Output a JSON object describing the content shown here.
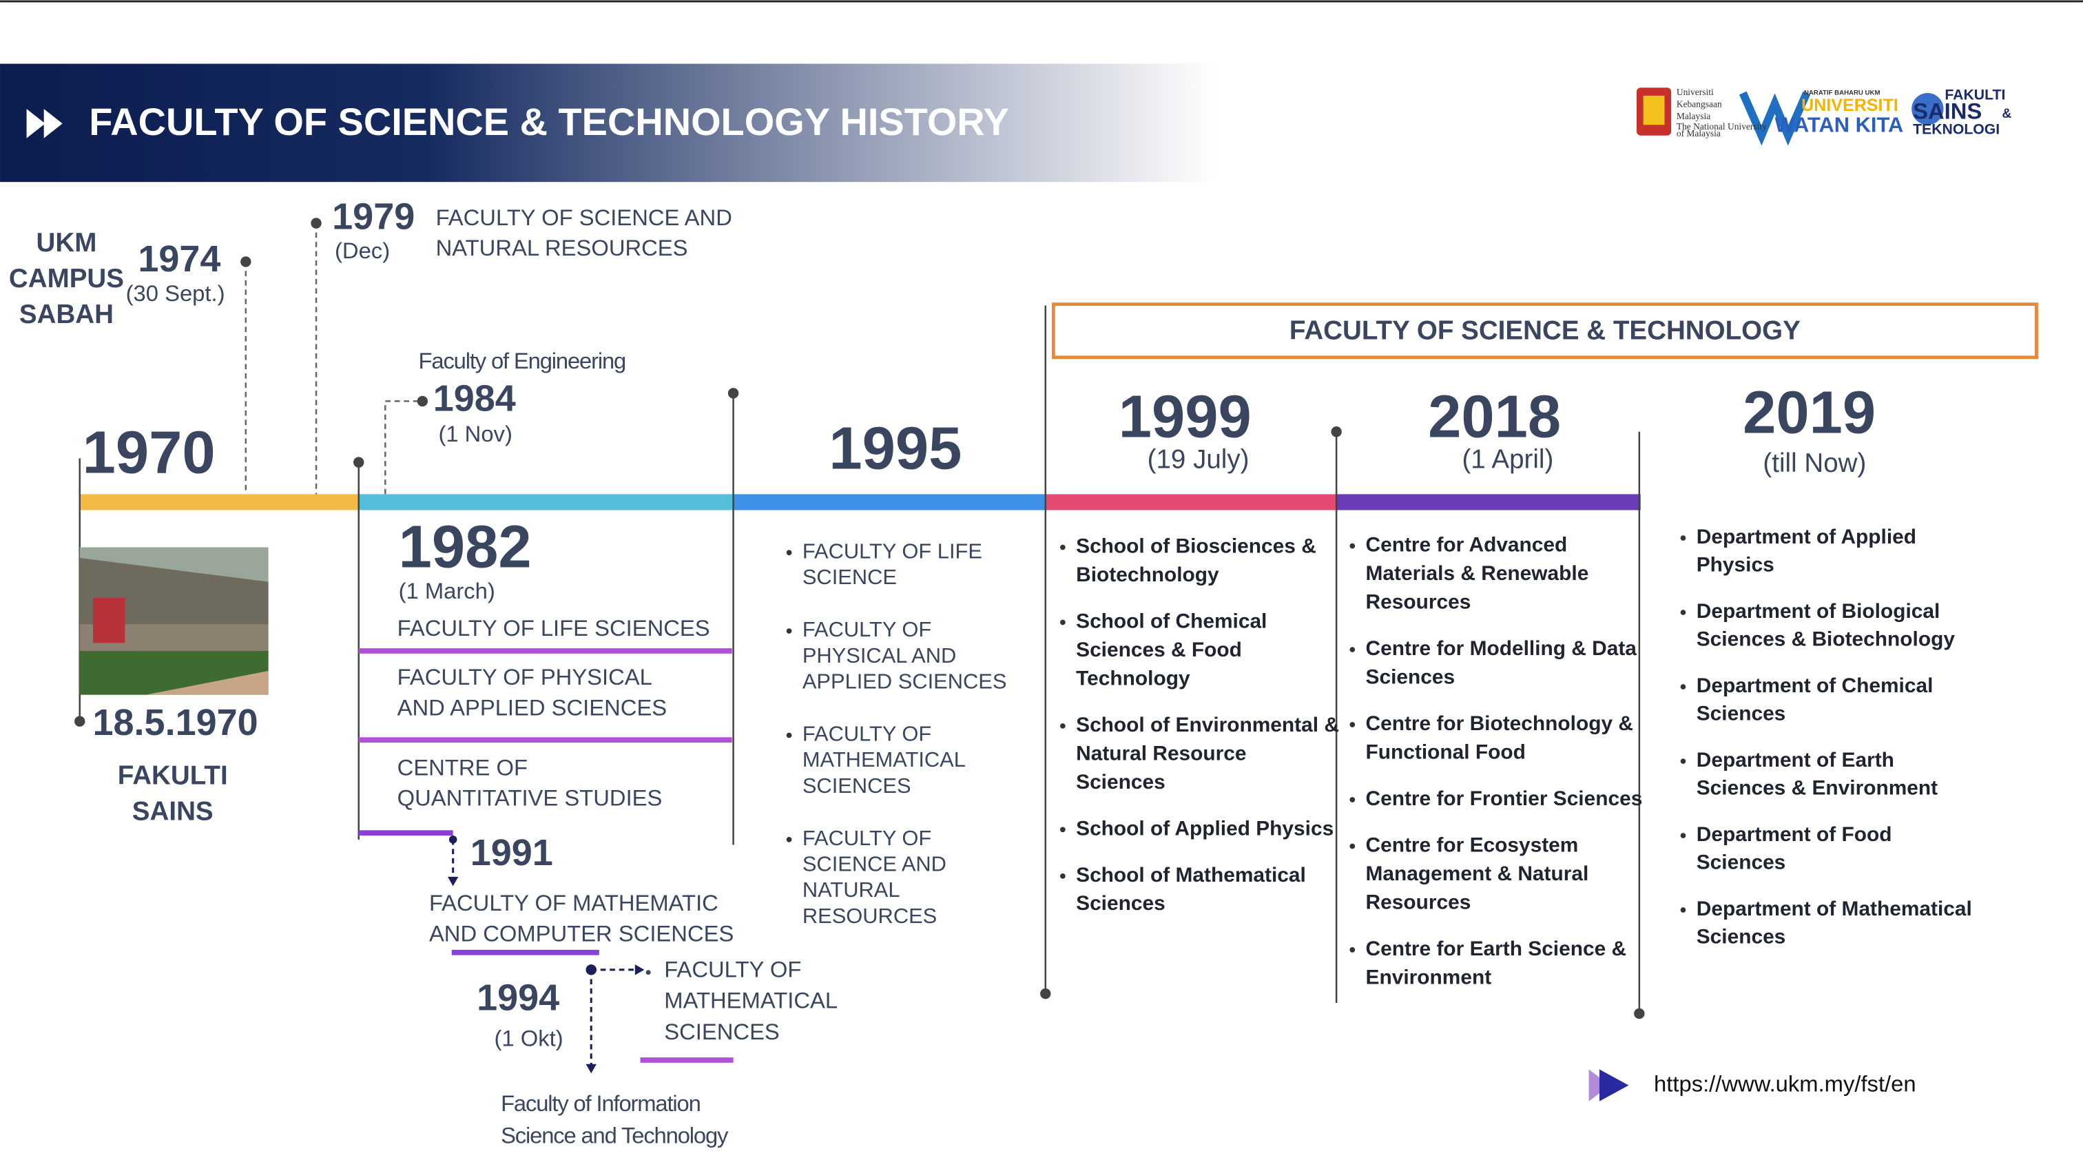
{
  "header": {
    "title": "FACULTY OF SCIENCE & TECHNOLOGY HISTORY"
  },
  "logos": {
    "ukm": [
      "Universiti",
      "Kebangsaan",
      "Malaysia"
    ],
    "ukm_tagline": [
      "The National University",
      "of Malaysia"
    ],
    "naratif": "NARATIF BAHARU UKM",
    "watan": [
      "UNIVERSITI",
      "WATAN KITA"
    ],
    "fst": [
      "FAKULTI",
      "SAINS",
      "&",
      "TEKNOLOGI"
    ]
  },
  "start": {
    "year": "1970",
    "campus": [
      "UKM",
      "CAMPUS",
      "SABAH"
    ],
    "photo_date": "18.5.1970",
    "photo_caption": [
      "FAKULTI",
      "SAINS"
    ]
  },
  "e1974": {
    "year": "1974",
    "date": "(30 Sept.)"
  },
  "e1979": {
    "year": "1979",
    "date": "(Dec)",
    "name": [
      "FACULTY OF SCIENCE AND",
      "NATURAL RESOURCES"
    ]
  },
  "e1984": {
    "name": "Faculty of Engineering",
    "year": "1984",
    "date": "(1 Nov)"
  },
  "e1982": {
    "year": "1982",
    "date": "(1 March)",
    "units": [
      [
        "FACULTY OF LIFE SCIENCES"
      ],
      [
        "FACULTY OF PHYSICAL",
        "AND APPLIED SCIENCES"
      ],
      [
        "CENTRE OF",
        "QUANTITATIVE STUDIES"
      ]
    ]
  },
  "e1991": {
    "year": "1991",
    "name": [
      "FACULTY OF MATHEMATIC",
      "AND COMPUTER SCIENCES"
    ]
  },
  "e1994": {
    "year": "1994",
    "date": "(1 Okt)",
    "name": [
      "FACULTY OF",
      "MATHEMATICAL",
      "SCIENCES"
    ],
    "other": [
      "Faculty of Information",
      "Science and Technology"
    ]
  },
  "e1995": {
    "year": "1995",
    "items": [
      [
        "FACULTY OF LIFE",
        "SCIENCE"
      ],
      [
        "FACULTY OF",
        "PHYSICAL AND",
        "APPLIED SCIENCES"
      ],
      [
        "FACULTY OF",
        "MATHEMATICAL",
        "SCIENCES"
      ],
      [
        "FACULTY OF",
        "SCIENCE AND",
        "NATURAL",
        "RESOURCES"
      ]
    ]
  },
  "banner": "FACULTY OF SCIENCE & TECHNOLOGY",
  "e1999": {
    "year": "1999",
    "date": "(19 July)",
    "items": [
      [
        "School of Biosciences &",
        "Biotechnology"
      ],
      [
        "School of Chemical",
        "Sciences & Food",
        "Technology"
      ],
      [
        "School of Environmental &",
        "Natural Resource",
        "Sciences"
      ],
      [
        "School of Applied  Physics"
      ],
      [
        "School of  Mathematical",
        "Sciences"
      ]
    ]
  },
  "e2018": {
    "year": "2018",
    "date": "(1 April)",
    "items": [
      [
        "Centre for Advanced",
        "Materials & Renewable",
        "Resources"
      ],
      [
        "Centre for Modelling & Data",
        "Sciences"
      ],
      [
        "Centre for Biotechnology &",
        "Functional Food"
      ],
      [
        "Centre for Frontier Sciences"
      ],
      [
        "Centre for Ecosystem",
        "Management & Natural",
        "Resources"
      ],
      [
        "Centre for Earth Science &",
        "Environment"
      ]
    ]
  },
  "e2019": {
    "year": "2019",
    "date": "(till Now)",
    "items": [
      [
        "Department of Applied",
        "Physics"
      ],
      [
        "Department of Biological",
        "Sciences & Biotechnology"
      ],
      [
        "Department of Chemical",
        "Sciences"
      ],
      [
        "Department of Earth",
        "Sciences & Environment"
      ],
      [
        "Department of Food",
        "Sciences"
      ],
      [
        "Department of Mathematical",
        "Sciences"
      ]
    ]
  },
  "url": "https://www.ukm.my/fst/en"
}
